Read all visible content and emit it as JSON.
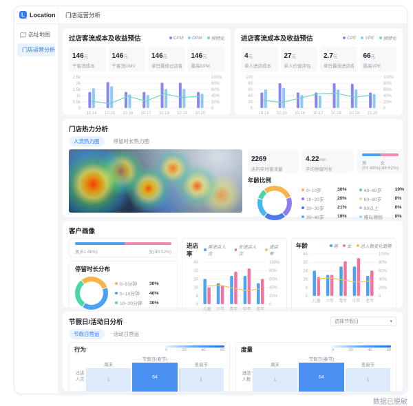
{
  "header": {
    "brand": "Location",
    "tab": "门店运营分析"
  },
  "sidebar": {
    "items": [
      {
        "label": "选址地图"
      },
      {
        "label": "门店运营分析"
      }
    ]
  },
  "cards": {
    "pass": {
      "title": "过店客流成本及收益预估",
      "legend": [
        {
          "label": "CPM",
          "color": "#8488ee"
        },
        {
          "label": "DPM",
          "color": "#8ec9f5"
        },
        {
          "label": "预转化",
          "color": "#74d2c5"
        }
      ],
      "stats": [
        {
          "value": "146",
          "unit": "元",
          "label": "千客流成本"
        },
        {
          "value": "146",
          "unit": "元",
          "label": "千客流GMV"
        },
        {
          "value": "146",
          "unit": "元",
          "label": "单日最佳过店客流"
        },
        {
          "value": "146",
          "unit": "元",
          "label": "最高DPM"
        }
      ]
    },
    "enter": {
      "title": "进店客流成本及收益预估",
      "legend": [
        {
          "label": "CPE",
          "color": "#8488ee"
        },
        {
          "label": "VPE",
          "color": "#8ec9f5"
        },
        {
          "label": "预转化",
          "color": "#74d2c5"
        }
      ],
      "stats": [
        {
          "value": "4",
          "unit": "元",
          "label": "单人进店成本"
        },
        {
          "value": "27",
          "unit": "元",
          "label": "单人价值评估"
        },
        {
          "value": "2.7",
          "unit": "元",
          "label": "单日最佳进店成本"
        },
        {
          "value": "66",
          "unit": "元",
          "label": "最高VPE"
        }
      ]
    },
    "heat": {
      "title": "门店热力分析",
      "tabs": [
        {
          "label": "人流热力图"
        },
        {
          "label": "停留时长热力图"
        }
      ],
      "stats": [
        {
          "value": "2269",
          "unit": "",
          "label": "店内实时客流量"
        },
        {
          "value": "4.22",
          "unit": "min",
          "label": "平均停留时长"
        }
      ],
      "gender": {
        "male_label": "男(51.48%)",
        "female_label": "女(48.52%)",
        "male_pct": 51.48
      },
      "age_title": "年龄比例",
      "age_legend": [
        {
          "label": "0~10岁",
          "pct": "30%",
          "color": "#f6b44b"
        },
        {
          "label": "10~20岁",
          "pct": "20%",
          "color": "#8d7df2"
        },
        {
          "label": "20~30岁",
          "pct": "21%",
          "color": "#4e78ee"
        },
        {
          "label": "30~40岁",
          "pct": "19%",
          "color": "#45b8f5"
        },
        {
          "label": "40~60岁",
          "pct": "10%",
          "color": "#4cd6a3"
        },
        {
          "label": "60~80岁",
          "pct": "0%",
          "color": "#f8d49a"
        },
        {
          "label": "80以上",
          "pct": "0%",
          "color": "#c7b3f5"
        },
        {
          "label": "难以辨别",
          "pct": "0%",
          "color": "#9fd6f8"
        }
      ]
    },
    "profile": {
      "title": "客户画像",
      "gender": {
        "male_label": "男(51.48%)",
        "female_label": "女(48.52%)",
        "male_pct": 51.48
      },
      "duration_title": "停留时长分布",
      "duration_legend": [
        {
          "label": "0~5分钟",
          "pct": "30%",
          "color": "#f6b44b"
        },
        {
          "label": "5~10分钟",
          "pct": "40%",
          "color": "#4ba1f2"
        },
        {
          "label": "10~20分钟",
          "pct": "30%",
          "color": "#4cd6a3"
        }
      ],
      "entry_title": "进店率",
      "entry_legend": [
        {
          "label": "男进店人次",
          "color": "#4ba1f2"
        },
        {
          "label": "女进店人次",
          "color": "#f2739f"
        },
        {
          "label": "进店率",
          "color": "#f5c150"
        }
      ],
      "age_title": "年龄",
      "age_legend": [
        {
          "label": "男",
          "color": "#4ba1f2"
        },
        {
          "label": "女",
          "color": "#f2739f"
        },
        {
          "label": "总人数变化趋势",
          "color": "#f5c150"
        }
      ]
    },
    "holiday": {
      "title": "节假日/活动日分析",
      "tabs": [
        {
          "label": "节假日营运"
        },
        {
          "label": "活动日营运"
        }
      ],
      "select_value": "选择节假日",
      "panels": [
        {
          "title": "行为",
          "scale_ticks": [
            "0",
            "20",
            "40",
            "60"
          ],
          "columns": [
            "周末",
            "节假日(春节)",
            "圣诞节"
          ],
          "row_label_1": "过店",
          "row_label_2": "人次",
          "values": [
            "1",
            "64",
            "1"
          ]
        },
        {
          "title": "度量",
          "scale_ticks": [
            "0",
            "20",
            "40",
            "60"
          ],
          "columns": [
            "周末",
            "节假日(春节)",
            "圣诞节"
          ],
          "row_label_1": "进店",
          "row_label_2": "人数",
          "values": [
            "1",
            "64",
            "1"
          ]
        }
      ]
    }
  },
  "footer": "数据已脱敏",
  "chart_data": [
    {
      "id": "pass-traffic-chart",
      "type": "bar",
      "title": "过店客流成本及收益预估",
      "categories": [
        "10.14",
        "10.15",
        "10.16",
        "10.17",
        "10.18",
        "10.19",
        "10.20"
      ],
      "left_ticks": [
        "0",
        "0.5k",
        "1k",
        "1.5k",
        "2k",
        "2.5k"
      ],
      "right_ticks": [
        "0",
        "20%",
        "40%",
        "60%",
        "80%",
        "100%"
      ],
      "left_max": 2500,
      "right_max": 100,
      "bw": 4,
      "series": [
        {
          "name": "CPM",
          "color": "#8488ee",
          "values": [
            1300,
            2100,
            1300,
            1300,
            2050,
            2050,
            1300
          ]
        },
        {
          "name": "DPM",
          "color": "#8ec9f5",
          "values": [
            1600,
            1750,
            1100,
            1050,
            1550,
            1550,
            1150
          ]
        }
      ],
      "line": {
        "name": "预转化",
        "color": "#74d2c5",
        "values": [
          22,
          14,
          38,
          22,
          46,
          34,
          38
        ]
      }
    },
    {
      "id": "enter-traffic-chart",
      "type": "bar",
      "title": "进店客流成本及收益预估",
      "categories": [
        "10.14",
        "10.15",
        "10.16",
        "10.17",
        "10.18",
        "10.19",
        "10.20"
      ],
      "left_ticks": [
        "0",
        "20",
        "40",
        "60",
        "80",
        "100"
      ],
      "right_ticks": [
        "0",
        "20%",
        "40%",
        "60%",
        "80%",
        "100%"
      ],
      "left_max": 100,
      "right_max": 100,
      "bw": 4,
      "series": [
        {
          "name": "CPE",
          "color": "#8488ee",
          "values": [
            50,
            80,
            50,
            50,
            80,
            78,
            50
          ]
        },
        {
          "name": "VPE",
          "color": "#8ec9f5",
          "values": [
            60,
            65,
            42,
            40,
            60,
            60,
            45
          ]
        }
      ],
      "line": {
        "name": "预转化",
        "color": "#74d2c5",
        "values": [
          25,
          18,
          32,
          46,
          48,
          35,
          42
        ]
      }
    },
    {
      "id": "age-ratio-donut",
      "type": "pie",
      "title": "年龄比例",
      "segments": [
        {
          "label": "0~10岁",
          "color": "#f6b44b",
          "value": 30
        },
        {
          "label": "10~20岁",
          "color": "#8d7df2",
          "value": 20
        },
        {
          "label": "20~30岁",
          "color": "#4e78ee",
          "value": 21
        },
        {
          "label": "30~40岁",
          "color": "#45b8f5",
          "value": 19
        },
        {
          "label": "40~60岁",
          "color": "#4cd6a3",
          "value": 10
        },
        {
          "label": "60~80岁",
          "color": "#f8d49a",
          "value": 0
        },
        {
          "label": "80以上",
          "color": "#c7b3f5",
          "value": 0
        },
        {
          "label": "难以辨别",
          "color": "#9fd6f8",
          "value": 0
        }
      ]
    },
    {
      "id": "duration-donut",
      "type": "pie",
      "title": "停留时长分布",
      "segments": [
        {
          "label": "0~5分钟",
          "color": "#f6b44b",
          "value": 30
        },
        {
          "label": "5~10分钟",
          "color": "#4ba1f2",
          "value": 40
        },
        {
          "label": "10~20分钟",
          "color": "#4cd6a3",
          "value": 30
        }
      ]
    },
    {
      "id": "entry-rate-chart",
      "type": "bar",
      "title": "进店率",
      "categories": [
        "儿童",
        "少年",
        "青年",
        "中年",
        "老年"
      ],
      "left_ticks": [
        "0",
        "8",
        "16",
        "24",
        "32",
        "40"
      ],
      "right_ticks": [
        "0",
        "20%",
        "40%",
        "60%",
        "80%",
        "100%"
      ],
      "left_max": 40,
      "right_max": 100,
      "bw": 4.5,
      "series": [
        {
          "name": "男进店人次",
          "color": "#4ba1f2",
          "values": [
            24,
            20,
            27,
            27,
            20
          ]
        },
        {
          "name": "女进店人次",
          "color": "#f2739f",
          "values": [
            16,
            18,
            31,
            34,
            24
          ]
        }
      ],
      "line": {
        "name": "进店率",
        "color": "#f5c150",
        "values": [
          43,
          45,
          38,
          32,
          37
        ]
      }
    },
    {
      "id": "age-gender-chart",
      "type": "bar",
      "title": "年龄",
      "categories": [
        "儿童",
        "少年",
        "青年",
        "中年",
        "老年"
      ],
      "left_ticks": [
        "0",
        "8",
        "16",
        "24",
        "32",
        "40"
      ],
      "right_ticks": [
        "0",
        "20%",
        "40%",
        "60%",
        "80%",
        "100%"
      ],
      "left_max": 40,
      "right_max": 100,
      "bw": 4.5,
      "series": [
        {
          "name": "男",
          "color": "#4ba1f2",
          "values": [
            24,
            20,
            28,
            28,
            19
          ]
        },
        {
          "name": "女",
          "color": "#f2739f",
          "values": [
            18,
            20,
            33,
            36,
            24
          ]
        }
      ],
      "line": {
        "name": "总人数变化趋势",
        "color": "#f5c150",
        "values": [
          40,
          43,
          38,
          33,
          36
        ]
      }
    }
  ]
}
